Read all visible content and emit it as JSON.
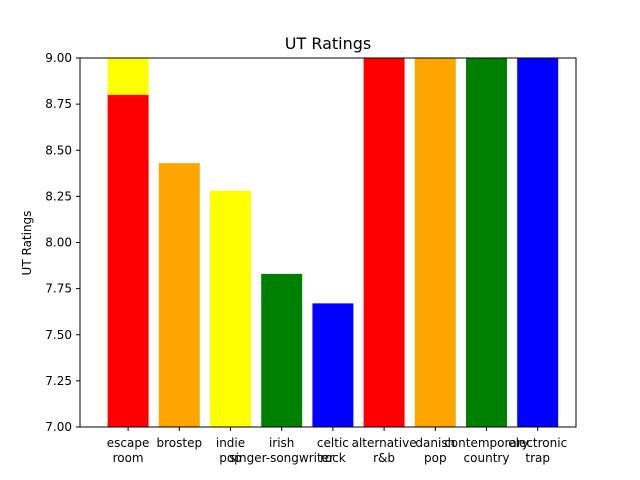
{
  "chart_data": {
    "type": "bar",
    "title": "UT Ratings",
    "xlabel": "",
    "ylabel": "UT Ratings",
    "ylim": [
      7.0,
      9.0
    ],
    "yticks": [
      "7.00",
      "7.25",
      "7.50",
      "7.75",
      "8.00",
      "8.25",
      "8.50",
      "8.75",
      "9.00"
    ],
    "categories": [
      [
        "escape",
        "room"
      ],
      [
        "brostep"
      ],
      [
        "indie",
        "pop"
      ],
      [
        "irish",
        "singer-songwriter"
      ],
      [
        "celtic",
        "rock"
      ],
      [
        "alternative",
        "r&b"
      ],
      [
        "danish",
        "pop"
      ],
      [
        "contemporary",
        "country"
      ],
      [
        "electronic",
        "trap"
      ]
    ],
    "series": [
      {
        "values": [
          9.0,
          8.43,
          8.28,
          7.83,
          7.67,
          9.0,
          9.0,
          9.0,
          9.0
        ],
        "colors": [
          "#ffff00",
          "#ffa500",
          "#ffff00",
          "#008000",
          "#0000ff",
          "#ff0000",
          "#ffa500",
          "#008000",
          "#0000ff"
        ]
      },
      {
        "values": [
          8.8,
          null,
          null,
          null,
          null,
          null,
          null,
          null,
          null
        ],
        "colors": [
          "#ff0000",
          null,
          null,
          null,
          null,
          null,
          null,
          null,
          null
        ]
      }
    ],
    "grid": false,
    "legend": "none"
  }
}
